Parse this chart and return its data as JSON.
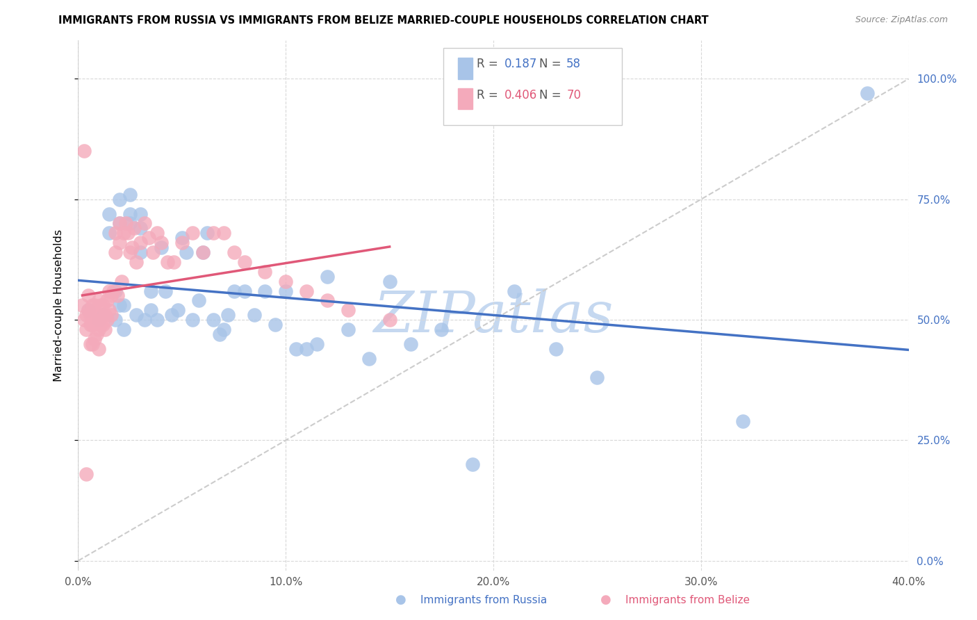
{
  "title": "IMMIGRANTS FROM RUSSIA VS IMMIGRANTS FROM BELIZE MARRIED-COUPLE HOUSEHOLDS CORRELATION CHART",
  "source": "Source: ZipAtlas.com",
  "ylabel": "Married-couple Households",
  "xlim": [
    0.0,
    0.4
  ],
  "ylim": [
    -0.02,
    1.08
  ],
  "russia_R": 0.187,
  "russia_N": 58,
  "belize_R": 0.406,
  "belize_N": 70,
  "russia_color": "#a8c4e8",
  "belize_color": "#f4aabb",
  "russia_line_color": "#4472c4",
  "belize_line_color": "#e05878",
  "diagonal_color": "#cccccc",
  "watermark": "ZIPatlas",
  "watermark_color": "#c5d8f0",
  "russia_x": [
    0.005,
    0.01,
    0.012,
    0.015,
    0.015,
    0.018,
    0.018,
    0.02,
    0.02,
    0.02,
    0.022,
    0.022,
    0.025,
    0.025,
    0.025,
    0.028,
    0.03,
    0.03,
    0.03,
    0.032,
    0.035,
    0.035,
    0.038,
    0.04,
    0.042,
    0.045,
    0.048,
    0.05,
    0.052,
    0.055,
    0.058,
    0.06,
    0.062,
    0.065,
    0.068,
    0.07,
    0.072,
    0.075,
    0.08,
    0.085,
    0.09,
    0.095,
    0.1,
    0.105,
    0.11,
    0.115,
    0.12,
    0.13,
    0.14,
    0.15,
    0.16,
    0.175,
    0.19,
    0.21,
    0.23,
    0.25,
    0.32,
    0.38
  ],
  "russia_y": [
    0.52,
    0.5,
    0.51,
    0.68,
    0.72,
    0.56,
    0.5,
    0.53,
    0.75,
    0.7,
    0.53,
    0.48,
    0.76,
    0.72,
    0.7,
    0.51,
    0.72,
    0.69,
    0.64,
    0.5,
    0.56,
    0.52,
    0.5,
    0.65,
    0.56,
    0.51,
    0.52,
    0.67,
    0.64,
    0.5,
    0.54,
    0.64,
    0.68,
    0.5,
    0.47,
    0.48,
    0.51,
    0.56,
    0.56,
    0.51,
    0.56,
    0.49,
    0.56,
    0.44,
    0.44,
    0.45,
    0.59,
    0.48,
    0.42,
    0.58,
    0.45,
    0.48,
    0.2,
    0.56,
    0.44,
    0.38,
    0.29,
    0.97
  ],
  "belize_x": [
    0.002,
    0.003,
    0.004,
    0.004,
    0.005,
    0.005,
    0.006,
    0.006,
    0.006,
    0.007,
    0.007,
    0.007,
    0.008,
    0.008,
    0.008,
    0.009,
    0.009,
    0.01,
    0.01,
    0.01,
    0.01,
    0.011,
    0.011,
    0.012,
    0.012,
    0.013,
    0.013,
    0.014,
    0.014,
    0.015,
    0.015,
    0.016,
    0.016,
    0.017,
    0.018,
    0.018,
    0.019,
    0.02,
    0.02,
    0.021,
    0.022,
    0.023,
    0.024,
    0.025,
    0.026,
    0.027,
    0.028,
    0.03,
    0.032,
    0.034,
    0.036,
    0.038,
    0.04,
    0.043,
    0.046,
    0.05,
    0.055,
    0.06,
    0.065,
    0.07,
    0.075,
    0.08,
    0.09,
    0.1,
    0.11,
    0.12,
    0.13,
    0.15,
    0.003,
    0.004
  ],
  "belize_y": [
    0.53,
    0.5,
    0.51,
    0.48,
    0.55,
    0.52,
    0.51,
    0.49,
    0.45,
    0.53,
    0.49,
    0.45,
    0.53,
    0.5,
    0.46,
    0.51,
    0.47,
    0.54,
    0.51,
    0.48,
    0.44,
    0.53,
    0.49,
    0.53,
    0.49,
    0.51,
    0.48,
    0.54,
    0.5,
    0.56,
    0.52,
    0.55,
    0.51,
    0.56,
    0.68,
    0.64,
    0.55,
    0.7,
    0.66,
    0.58,
    0.68,
    0.7,
    0.68,
    0.64,
    0.65,
    0.69,
    0.62,
    0.66,
    0.7,
    0.67,
    0.64,
    0.68,
    0.66,
    0.62,
    0.62,
    0.66,
    0.68,
    0.64,
    0.68,
    0.68,
    0.64,
    0.62,
    0.6,
    0.58,
    0.56,
    0.54,
    0.52,
    0.5,
    0.85,
    0.18
  ]
}
